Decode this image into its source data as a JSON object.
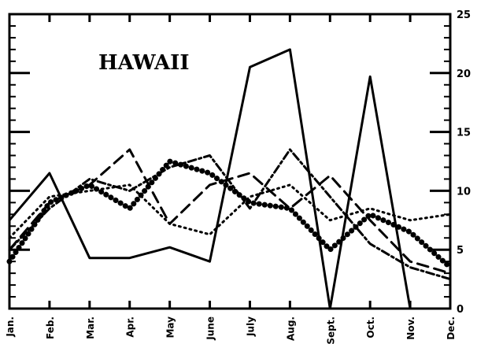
{
  "chart_data": {
    "type": "line",
    "title": "HAWAII",
    "xlabel": "",
    "ylabel": "",
    "categories": [
      "Jan.",
      "Feb.",
      "Mar.",
      "Apr.",
      "May",
      "June",
      "July",
      "Aug.",
      "Sept.",
      "Oct.",
      "Nov.",
      "Dec."
    ],
    "ylim": [
      0,
      25
    ],
    "yticks": [
      0,
      5,
      10,
      15,
      20,
      25
    ],
    "y_axis_side": "right",
    "grid": false,
    "legend": "none",
    "series": [
      {
        "style": "solid",
        "values": [
          7.5,
          11.5,
          4.3,
          4.3,
          5.2,
          4.0,
          20.5,
          22.0,
          0.0,
          19.7,
          0.0,
          null
        ]
      },
      {
        "style": "dashed",
        "values": [
          5.0,
          9.0,
          10.5,
          13.5,
          7.2,
          10.5,
          11.5,
          8.5,
          11.3,
          7.5,
          4.0,
          3.0
        ]
      },
      {
        "style": "dotted",
        "values": [
          6.0,
          9.5,
          10.0,
          10.5,
          7.2,
          6.3,
          9.5,
          10.5,
          7.5,
          8.5,
          7.5,
          8.0
        ]
      },
      {
        "style": "dash-dot",
        "values": [
          5.0,
          8.5,
          11.0,
          10.0,
          12.0,
          13.0,
          8.5,
          13.5,
          9.5,
          5.5,
          3.5,
          2.5
        ]
      },
      {
        "style": "dots",
        "values": [
          4.0,
          9.0,
          10.5,
          8.5,
          12.5,
          11.5,
          9.0,
          8.5,
          5.0,
          8.0,
          6.5,
          3.5
        ]
      }
    ]
  }
}
